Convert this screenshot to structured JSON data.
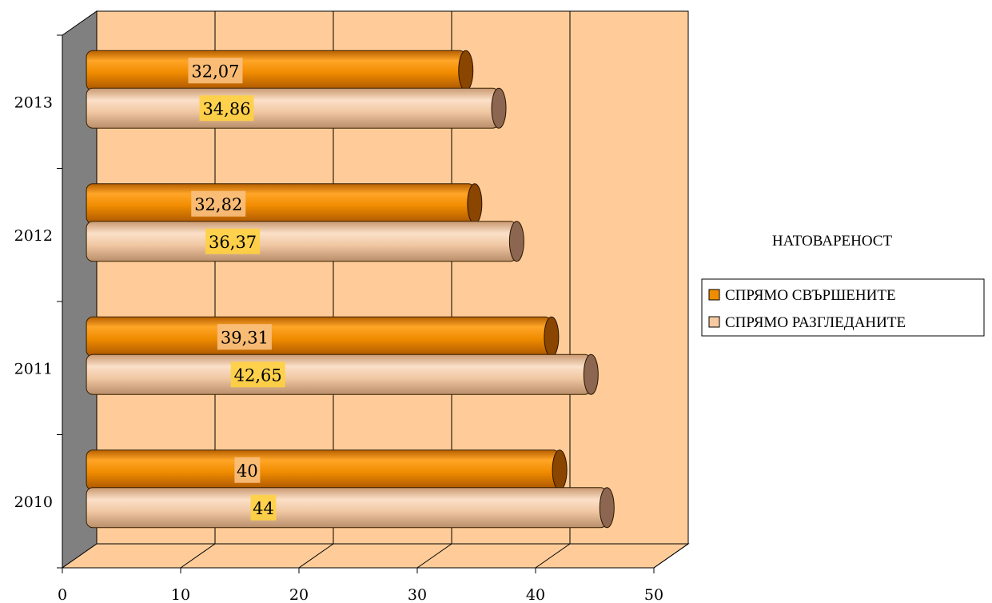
{
  "chart_data": {
    "type": "bar",
    "orientation": "horizontal",
    "style": "3d-cylinder",
    "categories": [
      "2010",
      "2011",
      "2012",
      "2013"
    ],
    "series": [
      {
        "name": "СПРЯМО СВЪРШЕНИТЕ",
        "color": "#f08c00",
        "labels": [
          "40",
          "39,31",
          "32,82",
          "32,07"
        ],
        "values": [
          40,
          39.31,
          32.82,
          32.07
        ]
      },
      {
        "name": "СПРЯМО РАЗГЛЕДАНИТЕ",
        "color": "#f6c9a1",
        "labels": [
          "44",
          "42,65",
          "36,37",
          "34,86"
        ],
        "values": [
          44,
          42.65,
          36.37,
          34.86
        ]
      }
    ],
    "xlim": [
      0,
      50
    ],
    "xticks": [
      "0",
      "10",
      "20",
      "30",
      "40",
      "50"
    ],
    "title": "",
    "xlabel": "",
    "ylabel": "",
    "grid": "vertical",
    "legend": {
      "title": "НАТОВАРЕНОСТ",
      "position": "right"
    },
    "colors": {
      "back_wall": "#ffcc99",
      "side_wall": "#808080",
      "floor": "#ffcc99",
      "label_box_1": "#f9c080",
      "label_box_2": "#ffd040"
    }
  }
}
